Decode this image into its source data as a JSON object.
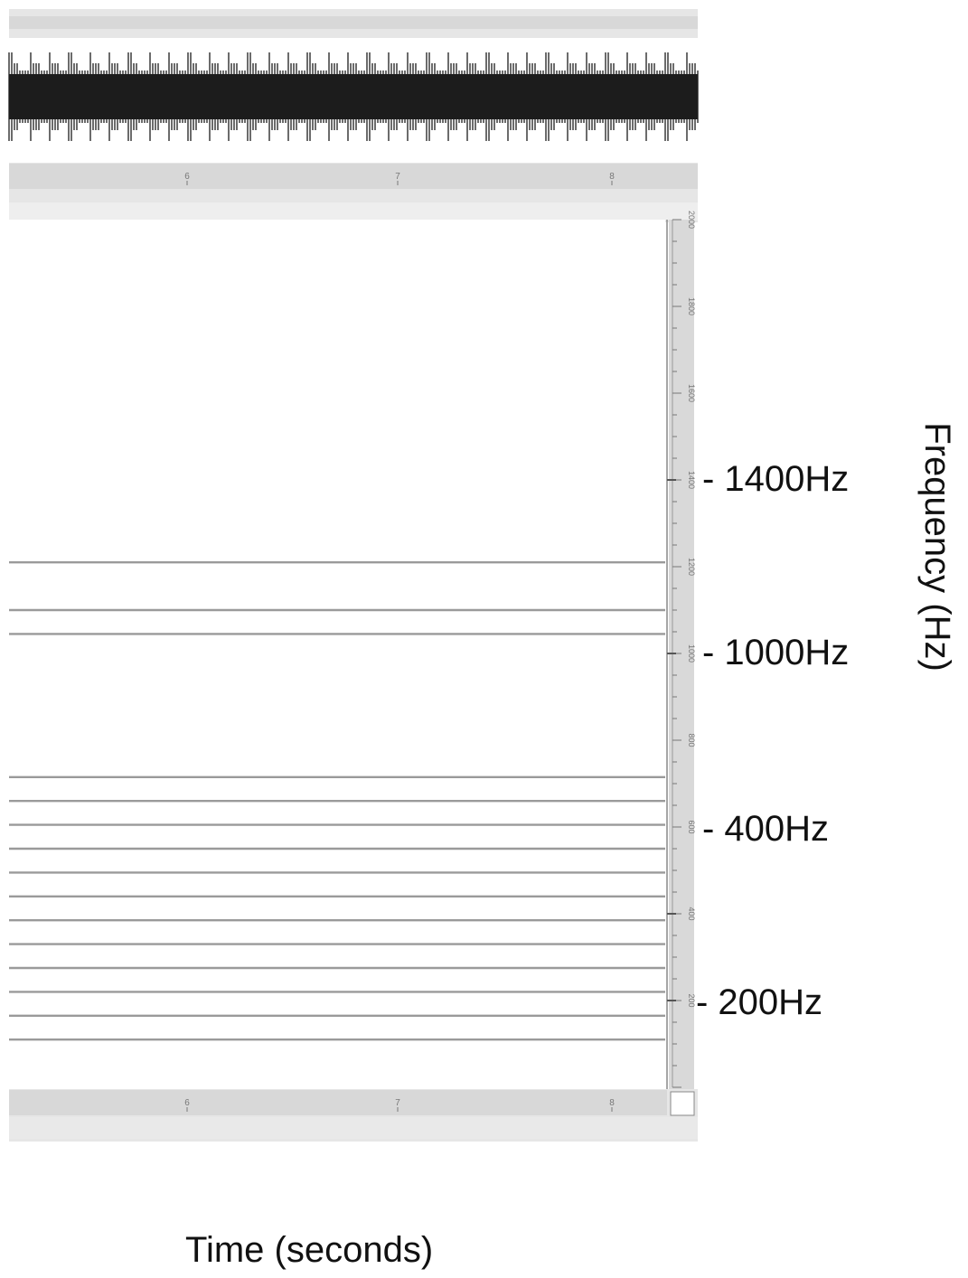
{
  "labels": {
    "xlabel": "Time (seconds)",
    "ylabel": "Frequency (Hz)"
  },
  "frequency_labels": [
    "- 1400Hz",
    "- 1000Hz",
    "- 400Hz",
    "- 200Hz"
  ],
  "colors": {
    "waveform": "#1c1c1c",
    "ruler_bar": "#d8d8d8",
    "ruler_band": "#e6e6e6",
    "partial_line": "#9a9a9a",
    "tick": "#777777"
  },
  "chart_data": [
    {
      "type": "line",
      "title": "",
      "xlabel": "",
      "ylabel": "",
      "x_ticks": [
        "6",
        "7",
        "8"
      ],
      "note_series": [
        {
          "values": "waveform with periodic spikes, amplitude roughly constant"
        }
      ]
    },
    {
      "type": "line",
      "title": "",
      "xlabel": "Time (seconds)",
      "ylabel": "Frequency (Hz)",
      "x_ticks": [
        "6",
        "7",
        "8"
      ],
      "ylim": [
        0,
        2000
      ],
      "y_ticks_small": [
        "200",
        "400",
        "600",
        "800",
        "1000",
        "1200",
        "1400",
        "1600",
        "1800",
        "2000"
      ],
      "y_ticks_large": [
        "- 1400Hz",
        "- 1000Hz",
        "- 400Hz",
        "- 200Hz"
      ],
      "series": [
        {
          "values": [
            110,
            110,
            110
          ]
        },
        {
          "values": [
            165,
            165,
            165
          ]
        },
        {
          "values": [
            220,
            220,
            220
          ]
        },
        {
          "values": [
            275,
            275,
            275
          ]
        },
        {
          "values": [
            330,
            330,
            330
          ]
        },
        {
          "values": [
            385,
            385,
            385
          ]
        },
        {
          "values": [
            440,
            440,
            440
          ]
        },
        {
          "values": [
            495,
            495,
            495
          ]
        },
        {
          "values": [
            550,
            550,
            550
          ]
        },
        {
          "values": [
            605,
            605,
            605
          ]
        },
        {
          "values": [
            660,
            660,
            660
          ]
        },
        {
          "values": [
            715,
            715,
            715
          ]
        },
        {
          "values": [
            1045,
            1045,
            1045
          ]
        },
        {
          "values": [
            1100,
            1100,
            1100
          ]
        },
        {
          "values": [
            1210,
            1210,
            1210
          ]
        }
      ]
    }
  ]
}
